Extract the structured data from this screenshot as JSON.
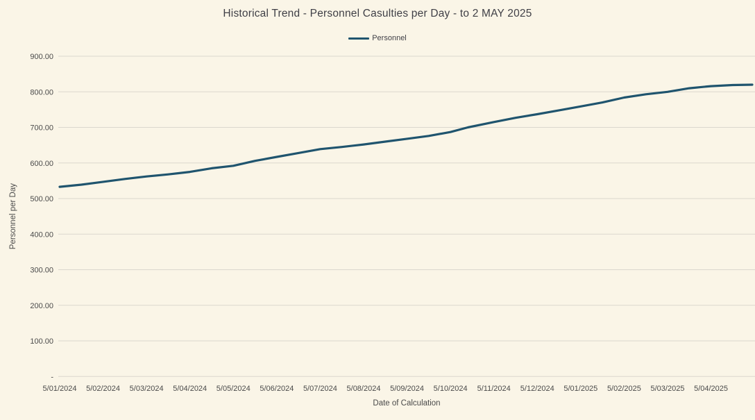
{
  "chart": {
    "title": "Historical Trend - Personnel Casulties per Day - to 2 MAY 2025",
    "legend": {
      "label": "Personnel"
    },
    "x_axis": {
      "title": "Date of Calculation"
    },
    "y_axis": {
      "title": "Personnel per Day"
    },
    "colors": {
      "background": "#FAF5E7",
      "series_line": "#1F546E",
      "gridline": "#DBD7CD",
      "title_text": "#3F3F46",
      "axis_text": "#4A4A4A"
    }
  },
  "chart_data": {
    "type": "line",
    "title": "Historical Trend - Personnel Casulties per Day - to 2 MAY 2025",
    "xlabel": "Date of Calculation",
    "ylabel": "Personnel per Day",
    "ylim": [
      0,
      900
    ],
    "grid": "horizontal",
    "legend_position": "top-center",
    "y_tick_labels": [
      "-",
      "100.00",
      "200.00",
      "300.00",
      "400.00",
      "500.00",
      "600.00",
      "700.00",
      "800.00",
      "900.00"
    ],
    "x_tick_labels": [
      "5/01/2024",
      "5/02/2024",
      "5/03/2024",
      "5/04/2024",
      "5/05/2024",
      "5/06/2024",
      "5/07/2024",
      "5/08/2024",
      "5/09/2024",
      "5/10/2024",
      "5/11/2024",
      "5/12/2024",
      "5/01/2025",
      "5/02/2025",
      "5/03/2025",
      "5/04/2025"
    ],
    "x_is_tick_index": true,
    "series": [
      {
        "name": "Personnel",
        "color": "#1F546E",
        "points": [
          [
            0,
            533
          ],
          [
            0.5,
            539
          ],
          [
            1,
            547
          ],
          [
            1.5,
            555
          ],
          [
            2,
            562
          ],
          [
            2.5,
            568
          ],
          [
            3,
            575
          ],
          [
            3.5,
            585
          ],
          [
            4,
            592
          ],
          [
            4.5,
            606
          ],
          [
            5,
            617
          ],
          [
            5.5,
            628
          ],
          [
            6,
            639
          ],
          [
            6.5,
            645
          ],
          [
            7,
            652
          ],
          [
            7.5,
            660
          ],
          [
            8,
            668
          ],
          [
            8.5,
            676
          ],
          [
            9,
            687
          ],
          [
            9.4,
            700
          ],
          [
            10,
            715
          ],
          [
            10.5,
            727
          ],
          [
            11,
            737
          ],
          [
            11.5,
            748
          ],
          [
            12,
            759
          ],
          [
            12.5,
            770
          ],
          [
            13,
            784
          ],
          [
            13.5,
            793
          ],
          [
            14,
            800
          ],
          [
            14.5,
            810
          ],
          [
            15,
            816
          ],
          [
            15.5,
            819
          ],
          [
            15.95,
            820
          ]
        ]
      }
    ]
  }
}
